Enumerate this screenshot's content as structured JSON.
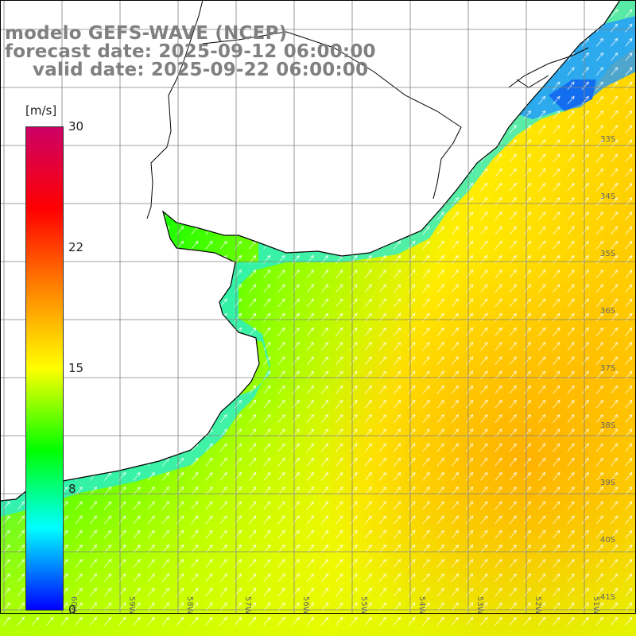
{
  "header": {
    "line1": "modelo GEFS-WAVE (NCEP)",
    "line2": "forecast date: 2025-09-12 06:00:00",
    "line3": "valid date: 2025-09-22 06:00:00"
  },
  "colorbar": {
    "unit": "[m/s]",
    "ticks": [
      "30",
      "22",
      "15",
      "8",
      "0"
    ],
    "range": [
      0,
      30
    ],
    "colors": [
      "#0000ff",
      "#00ffff",
      "#00ff00",
      "#ffff00",
      "#ff8000",
      "#ff0000",
      "#cc0066"
    ]
  },
  "map": {
    "lat_labels": [
      "33S",
      "34S",
      "35S",
      "36S",
      "37S",
      "38S",
      "39S",
      "40S",
      "41S"
    ],
    "lon_labels": [
      "60W",
      "59W",
      "58W",
      "57W",
      "56W",
      "55W",
      "54W",
      "53W",
      "52W",
      "51W"
    ],
    "land_color": "#ffffff",
    "grid_color": "#808080",
    "arrow_color": "#ffffff"
  }
}
